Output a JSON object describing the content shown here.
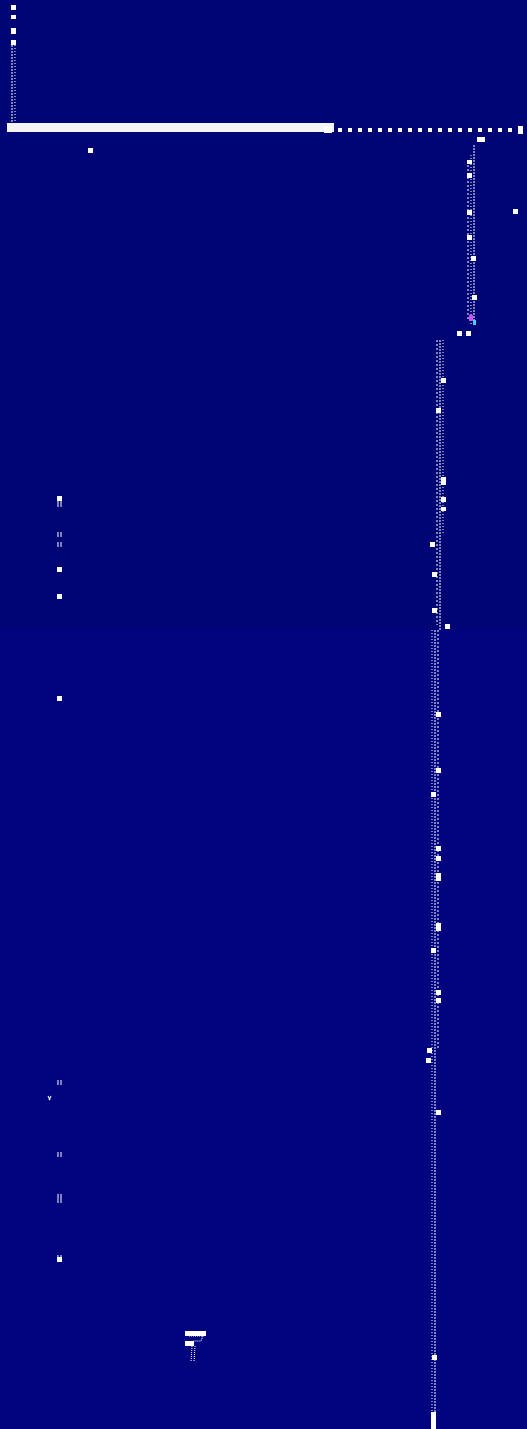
{
  "screen": {
    "description_mode": "abstract-ui-dump",
    "palette": {
      "background_top": "#000575",
      "background_bottom": "#02047f",
      "foreground": "#ffffff",
      "accent_magenta": "#d44cff",
      "accent_cyan": "#39d7ff"
    }
  }
}
